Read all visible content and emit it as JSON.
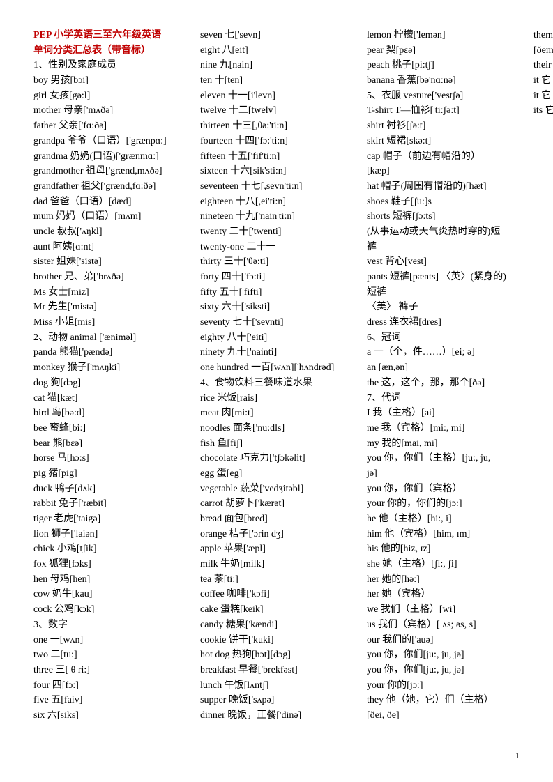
{
  "title_lines": [
    "PEP 小学英语三至六年级英语",
    "单词分类汇总表（带音标）"
  ],
  "pagenum": "1",
  "lines": [
    "1、性别及家庭成员",
    "boy      男孩[bɔi]",
    "girl     女孩[gə:l]",
    "mother  母亲['mʌðə]",
    "father  父亲['fɑ:ðə]",
    "grandpa 爷爷（口语）['grænpɑ:]",
    "grandma 奶奶(口语)['grænmɑ:]",
    "grandmother 祖母['grænd,mʌðə]",
    "grandfather 祖父['grænd,fɑ:ðə]",
    "dad     爸爸（口语）[dæd]",
    "mum  妈妈（口语）[mʌm]",
    "uncle  叔叔['ʌŋkl]",
    "aunt     阿姨[ɑ:nt]",
    "sister   姐妹['sistə]",
    "brother  兄、弟['brʌðə]",
    "Ms      女士[miz]",
    "Mr      先生['mistə]",
    "Miss    小姐[mis]",
    "2、动物 animal ['æniməl]",
    "panda  熊猫['pændə]",
    "monkey  猴子['mʌŋki]",
    "dog     狗[dɔg]",
    "cat      猫[kæt]",
    "bird     鸟[bə:d]",
    "bee      蜜蜂[bi:]",
    "bear     熊[bɛə]",
    "horse  马[hɔ:s]",
    "pig      猪[pig]",
    "duck     鸭子[dʌk]",
    "rabbit  兔子['ræbit]",
    "tiger     老虎['taigə]",
    "lion      狮子['laiən]",
    "chick  小鸡[tʃik]",
    "fox      狐狸[fɔks]",
    "hen      母鸡[hen]",
    "cow     奶牛[kau]",
    "cock     公鸡[kɔk]",
    "3、数字",
    "one      一[wʌn]",
    "two     二[tu:]",
    "three     三[ θ ri:]",
    "four     四[fɔ:]",
    "five      五[faiv]",
    "six     六[siks]",
    "seven  七['sevn]",
    "eight     八[eit]",
    "nine      九[nain]",
    "ten       十[ten]",
    "eleven  十一[i'levn]",
    "twelve  十二[twelv]",
    "thirteen  十三[,θə:'ti:n]",
    "fourteen  十四['fɔ:'ti:n]",
    "fifteen  十五['fif'ti:n]",
    "sixteen  十六[sik'sti:n]",
    "seventeen 十七[,sevn'ti:n]",
    "eighteen  十八[,ei'ti:n]",
    "nineteen  十九['nain'ti:n]",
    "twenty  二十['twenti]",
    "twenty-one 二十一",
    "thirty  三十['θə:ti]",
    "forty     四十['fɔ:ti]",
    "fifty  五十['fifti]",
    "sixty      六十['siksti]",
    "seventy  七十['sevnti]",
    "eighty  八十['eiti]",
    "ninety  九十['nainti]",
    "one hundred 一百[wʌn]['hʌndrəd]",
    "4、食物饮料三餐味道水果",
    "rice      米饭[rais]",
    "meat     肉[mi:t]",
    "noodles  面条['nu:dls]",
    "fish      鱼[fiʃ]",
    "chocolate 巧克力['tʃɔkəlit]",
    "egg      蛋[eg]",
    "vegetable  蔬菜['vedʒitəbl]",
    "carrot  胡萝卜['kærət]",
    "bread  面包[bred]",
    "orange  桔子['ɔrin dʒ]",
    "apple  苹果['æpl]",
    "milk     牛奶[milk]",
    "tea      茶[ti:]",
    "coffee  咖啡['kɔfi]",
    "cake     蛋糕[keik]",
    "candy  糖果['kændi]",
    "cookie  饼干['kuki]",
    "hot dog  热狗[hɔt][dɔg]",
    "breakfast  早餐['brekfəst]",
    "lunch  午饭[lʌntʃ]",
    "supper  晚饭['sʌpə]",
    "dinner  晚饭，正餐['dinə]",
    "lemon  柠檬['lemən]",
    "pear     梨[pɛə]",
    "peach  桃子[pi:tʃ]",
    "banana  香蕉[bə'nɑ:nə]",
    "5、衣服 vesture['vestʃə]",
    "T-shirt T—恤衫['ti:ʃə:t]",
    "shirt     衬衫[ʃə:t]",
    "skirt     短裙[skə:t]",
    "cap     帽子（前边有帽沿的）",
    "[kæp]",
    "hat     帽子(周围有帽沿的)[hæt]",
    "shoes  鞋子[ʃu:]s",
    "shorts  短裤[ʃɔ:ts]",
    "(从事运动或天气炎热时穿的)短",
    "裤",
    "vest      背心[vest]",
    "pants  短裤[pænts] 〈英〉(紧身的)",
    "短裤",
    "〈美〉  裤子",
    "dress  连衣裙[dres]",
    "6、冠词",
    "a     一（个，件……）[ei; ə]",
    "an    [æn,ən]",
    "the    这，这个，那，那个[ðə]",
    "7、代词",
    "I     我（主格）[ai]",
    "me     我（宾格）[mi:, mi]",
    "my     我的[mai, mi]",
    "you      你，你们（主格）[ju:, ju,",
    "jə]",
    "you     你，你们（宾格）",
    "your     你的，你们的[jɔ:]",
    "he     他（主格）[hi:, i]",
    "him     他（宾格）[him, ɪm]",
    "his     他的[hiz, ɪz]",
    "she     她（主格）[ʃi:, ʃi]",
    "her     她的[hə:]",
    "her     她（宾格）",
    "we     我们（主格）[wi]",
    "us     我们（宾格）[ ʌs; əs, s]",
    "our     我们的['auə]",
    "you     你，你们[ju:, ju, jə]",
    "you     你，你们[ju:, ju, jə]",
    "your     你的[jɔ:]",
    "they     他（她，它）们（主格）",
    "[ðei, ðe]",
    "them  他（她，它）们（宾格）",
    "[ðem, ðəm]",
    "their 他（她，它）们的[ðɛə]",
    "it 它（主格）[it]",
    "it 它（宾格）[it]",
    "its  它的[its]"
  ]
}
